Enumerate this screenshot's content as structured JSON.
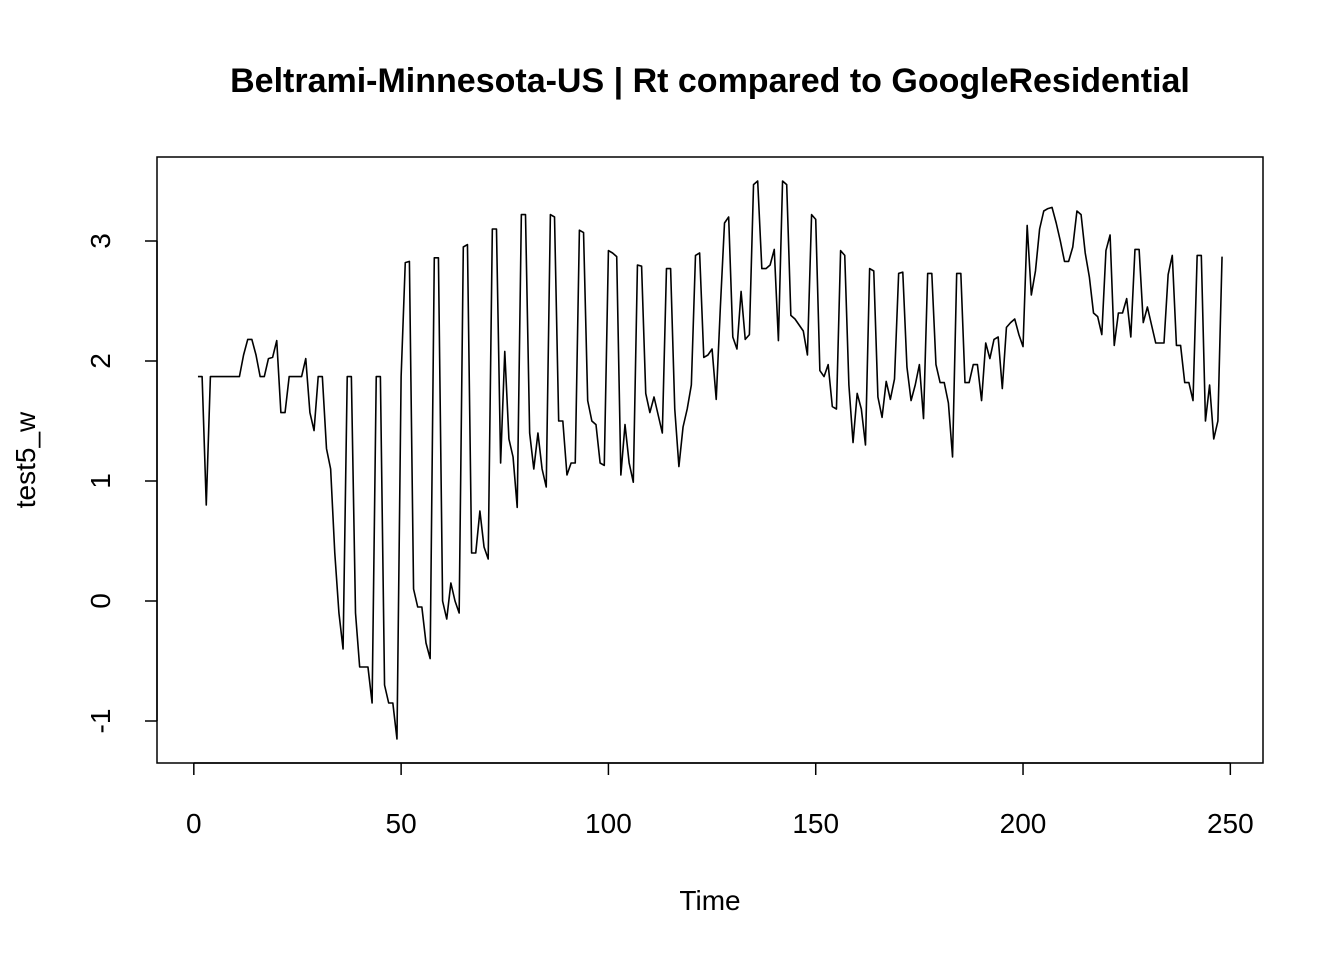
{
  "chart_data": {
    "type": "line",
    "title": "Beltrami-Minnesota-US | Rt compared to GoogleResidential",
    "x_label": "Time",
    "y_label": "test5_w",
    "x": [
      1,
      2,
      3,
      4,
      5,
      6,
      7,
      8,
      9,
      10,
      11,
      12,
      13,
      14,
      15,
      16,
      17,
      18,
      19,
      20,
      21,
      22,
      23,
      24,
      25,
      26,
      27,
      28,
      29,
      30,
      31,
      32,
      33,
      34,
      35,
      36,
      37,
      38,
      39,
      40,
      41,
      42,
      43,
      44,
      45,
      46,
      47,
      48,
      49,
      50,
      51,
      52,
      53,
      54,
      55,
      56,
      57,
      58,
      59,
      60,
      61,
      62,
      63,
      64,
      65,
      66,
      67,
      68,
      69,
      70,
      71,
      72,
      73,
      74,
      75,
      76,
      77,
      78,
      79,
      80,
      81,
      82,
      83,
      84,
      85,
      86,
      87,
      88,
      89,
      90,
      91,
      92,
      93,
      94,
      95,
      96,
      97,
      98,
      99,
      100,
      101,
      102,
      103,
      104,
      105,
      106,
      107,
      108,
      109,
      110,
      111,
      112,
      113,
      114,
      115,
      116,
      117,
      118,
      119,
      120,
      121,
      122,
      123,
      124,
      125,
      126,
      127,
      128,
      129,
      130,
      131,
      132,
      133,
      134,
      135,
      136,
      137,
      138,
      139,
      140,
      141,
      142,
      143,
      144,
      145,
      146,
      147,
      148,
      149,
      150,
      151,
      152,
      153,
      154,
      155,
      156,
      157,
      158,
      159,
      160,
      161,
      162,
      163,
      164,
      165,
      166,
      167,
      168,
      169,
      170,
      171,
      172,
      173,
      174,
      175,
      176,
      177,
      178,
      179,
      180,
      181,
      182,
      183,
      184,
      185,
      186,
      187,
      188,
      189,
      190,
      191,
      192,
      193,
      194,
      195,
      196,
      197,
      198,
      199,
      200,
      201,
      202,
      203,
      204,
      205,
      206,
      207,
      208,
      209,
      210,
      211,
      212,
      213,
      214,
      215,
      216,
      217,
      218,
      219,
      220,
      221,
      222,
      223,
      224,
      225,
      226,
      227,
      228,
      229,
      230,
      231,
      232,
      233,
      234,
      235,
      236,
      237,
      238,
      239,
      240,
      241,
      242,
      243,
      244,
      245,
      246,
      247,
      248
    ],
    "values": [
      1.87,
      1.87,
      0.8,
      1.87,
      1.87,
      1.87,
      1.87,
      1.87,
      1.87,
      1.87,
      1.87,
      2.05,
      2.18,
      2.18,
      2.05,
      1.87,
      1.87,
      2.02,
      2.03,
      2.17,
      1.57,
      1.57,
      1.87,
      1.87,
      1.87,
      1.87,
      2.02,
      1.57,
      1.42,
      1.87,
      1.87,
      1.27,
      1.1,
      0.4,
      -0.1,
      -0.4,
      1.87,
      1.87,
      -0.1,
      -0.55,
      -0.55,
      -0.55,
      -0.85,
      1.87,
      1.87,
      -0.7,
      -0.85,
      -0.85,
      -1.15,
      1.87,
      2.82,
      2.83,
      0.1,
      -0.05,
      -0.05,
      -0.35,
      -0.48,
      2.86,
      2.86,
      0.0,
      -0.15,
      0.15,
      0.0,
      -0.1,
      2.95,
      2.97,
      0.4,
      0.4,
      0.75,
      0.45,
      0.35,
      3.1,
      3.1,
      1.15,
      2.08,
      1.35,
      1.2,
      0.78,
      3.22,
      3.22,
      1.4,
      1.1,
      1.4,
      1.1,
      0.95,
      3.22,
      3.2,
      1.5,
      1.5,
      1.05,
      1.15,
      1.15,
      3.09,
      3.07,
      1.67,
      1.5,
      1.47,
      1.15,
      1.13,
      2.92,
      2.9,
      2.87,
      1.05,
      1.47,
      1.15,
      0.99,
      2.8,
      2.79,
      1.73,
      1.57,
      1.7,
      1.55,
      1.4,
      2.77,
      2.77,
      1.6,
      1.12,
      1.45,
      1.6,
      1.8,
      2.88,
      2.9,
      2.03,
      2.05,
      2.1,
      1.68,
      2.45,
      3.15,
      3.2,
      2.2,
      2.1,
      2.58,
      2.18,
      2.22,
      3.47,
      3.5,
      2.77,
      2.77,
      2.8,
      2.93,
      2.17,
      3.5,
      3.47,
      2.38,
      2.35,
      2.3,
      2.25,
      2.05,
      3.22,
      3.18,
      1.92,
      1.87,
      1.97,
      1.62,
      1.6,
      2.92,
      2.88,
      1.8,
      1.32,
      1.73,
      1.6,
      1.3,
      2.77,
      2.75,
      1.7,
      1.53,
      1.83,
      1.68,
      1.85,
      2.73,
      2.74,
      1.95,
      1.67,
      1.8,
      1.97,
      1.52,
      2.73,
      2.73,
      1.97,
      1.82,
      1.82,
      1.65,
      1.2,
      2.73,
      2.73,
      1.82,
      1.82,
      1.97,
      1.97,
      1.67,
      2.15,
      2.02,
      2.18,
      2.2,
      1.77,
      2.28,
      2.32,
      2.35,
      2.22,
      2.12,
      3.13,
      2.55,
      2.75,
      3.1,
      3.25,
      3.27,
      3.28,
      3.15,
      3.0,
      2.83,
      2.83,
      2.95,
      3.25,
      3.22,
      2.9,
      2.7,
      2.4,
      2.37,
      2.22,
      2.92,
      3.05,
      2.13,
      2.4,
      2.4,
      2.52,
      2.2,
      2.93,
      2.93,
      2.32,
      2.45,
      2.3,
      2.15,
      2.15,
      2.15,
      2.72,
      2.88,
      2.13,
      2.13,
      1.82,
      1.82,
      1.67,
      2.88,
      2.88,
      1.5,
      1.8,
      1.35,
      1.5,
      2.87
    ],
    "color": "#000000",
    "xlim": [
      -8.88,
      257.88
    ],
    "xticks": [
      0,
      50,
      100,
      150,
      200,
      250
    ],
    "ylim": [
      -1.35,
      3.7
    ],
    "yticks": [
      -1,
      0,
      1,
      2,
      3
    ]
  }
}
